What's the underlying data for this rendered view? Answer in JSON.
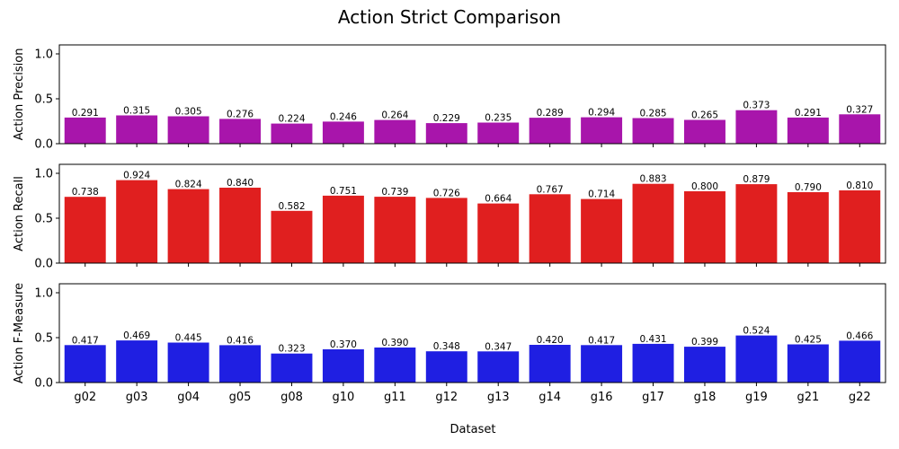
{
  "chart_data": {
    "type": "bar",
    "title": "Action Strict Comparison",
    "xlabel": "Dataset",
    "categories": [
      "g02",
      "g03",
      "g04",
      "g05",
      "g08",
      "g10",
      "g11",
      "g12",
      "g13",
      "g14",
      "g16",
      "g17",
      "g18",
      "g19",
      "g21",
      "g22"
    ],
    "ylim": [
      0,
      1.1
    ],
    "yticks": [
      "0.0",
      "0.5",
      "1.0"
    ],
    "grid": false,
    "panels": [
      {
        "ylabel": "Action Precision",
        "color": "#a815ab",
        "values": [
          0.291,
          0.315,
          0.305,
          0.276,
          0.224,
          0.246,
          0.264,
          0.229,
          0.235,
          0.289,
          0.294,
          0.285,
          0.265,
          0.373,
          0.291,
          0.327
        ],
        "labels": [
          "0.291",
          "0.315",
          "0.305",
          "0.276",
          "0.224",
          "0.246",
          "0.264",
          "0.229",
          "0.235",
          "0.289",
          "0.294",
          "0.285",
          "0.265",
          "0.373",
          "0.291",
          "0.327"
        ]
      },
      {
        "ylabel": "Action Recall",
        "color": "#e01f1f",
        "values": [
          0.738,
          0.924,
          0.824,
          0.84,
          0.582,
          0.751,
          0.739,
          0.726,
          0.664,
          0.767,
          0.714,
          0.883,
          0.8,
          0.879,
          0.79,
          0.81
        ],
        "labels": [
          "0.738",
          "0.924",
          "0.824",
          "0.840",
          "0.582",
          "0.751",
          "0.739",
          "0.726",
          "0.664",
          "0.767",
          "0.714",
          "0.883",
          "0.800",
          "0.879",
          "0.790",
          "0.810"
        ]
      },
      {
        "ylabel": "Action F-Measure",
        "color": "#1f1fe2",
        "values": [
          0.417,
          0.469,
          0.445,
          0.416,
          0.323,
          0.37,
          0.39,
          0.348,
          0.347,
          0.42,
          0.417,
          0.431,
          0.399,
          0.524,
          0.425,
          0.466
        ],
        "labels": [
          "0.417",
          "0.469",
          "0.445",
          "0.416",
          "0.323",
          "0.370",
          "0.390",
          "0.348",
          "0.347",
          "0.420",
          "0.417",
          "0.431",
          "0.399",
          "0.524",
          "0.425",
          "0.466"
        ]
      }
    ]
  }
}
